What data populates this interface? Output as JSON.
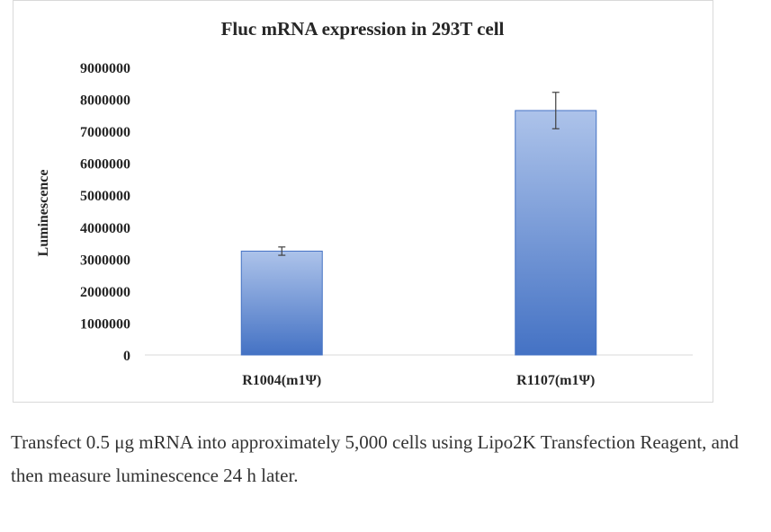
{
  "chart_data": {
    "type": "bar",
    "title": "Fluc mRNA expression in 293T cell",
    "xlabel": "",
    "ylabel": "Luminescence",
    "categories": [
      "R1004(m1Ψ)",
      "R1107(m1Ψ)"
    ],
    "values": [
      3250000,
      7650000
    ],
    "error": [
      130000,
      570000
    ],
    "ylim": [
      0,
      9000000
    ],
    "yticks": [
      0,
      1000000,
      2000000,
      3000000,
      4000000,
      5000000,
      6000000,
      7000000,
      8000000,
      9000000
    ],
    "grid": false,
    "legend": "none",
    "bar_color_top": "#adc3ea",
    "bar_color_bottom": "#4472c4",
    "bar_border": "#4472c4"
  },
  "caption": "Transfect 0.5 μg mRNA into approximately 5,000 cells using Lipo2K Transfection Reagent, and then measure luminescence 24 h later."
}
